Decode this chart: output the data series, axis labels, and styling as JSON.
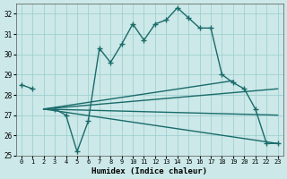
{
  "xlabel": "Humidex (Indice chaleur)",
  "x": [
    0,
    1,
    2,
    3,
    4,
    5,
    6,
    7,
    8,
    9,
    10,
    11,
    12,
    13,
    14,
    15,
    16,
    17,
    18,
    19,
    20,
    21,
    22,
    23
  ],
  "line1": [
    28.5,
    28.3,
    null,
    27.3,
    27.0,
    25.2,
    26.7,
    30.3,
    29.6,
    30.5,
    31.5,
    30.7,
    31.5,
    31.7,
    32.3,
    31.8,
    31.3,
    31.3,
    29.0,
    28.6,
    28.3,
    27.3,
    25.6,
    25.6
  ],
  "straight_lines": [
    {
      "x0": 2,
      "y0": 27.3,
      "x1": 19,
      "y1": 28.7
    },
    {
      "x0": 2,
      "y0": 27.3,
      "x1": 19,
      "y1": 28.7
    },
    {
      "x0": 2,
      "y0": 27.3,
      "x1": 23,
      "y1": 28.3
    },
    {
      "x0": 2,
      "y0": 27.3,
      "x1": 23,
      "y1": 25.6
    }
  ],
  "ylim": [
    25,
    32.5
  ],
  "xlim": [
    -0.5,
    23.5
  ],
  "yticks": [
    25,
    26,
    27,
    28,
    29,
    30,
    31,
    32
  ],
  "xticks": [
    0,
    1,
    2,
    3,
    4,
    5,
    6,
    7,
    8,
    9,
    10,
    11,
    12,
    13,
    14,
    15,
    16,
    17,
    18,
    19,
    20,
    21,
    22,
    23
  ],
  "line_color": "#1a6b6b",
  "bg_color": "#cce8e8",
  "grid_color": "#99cccc",
  "text_color": "#000000",
  "linewidth": 1.0,
  "marker": "+",
  "markersize": 4
}
